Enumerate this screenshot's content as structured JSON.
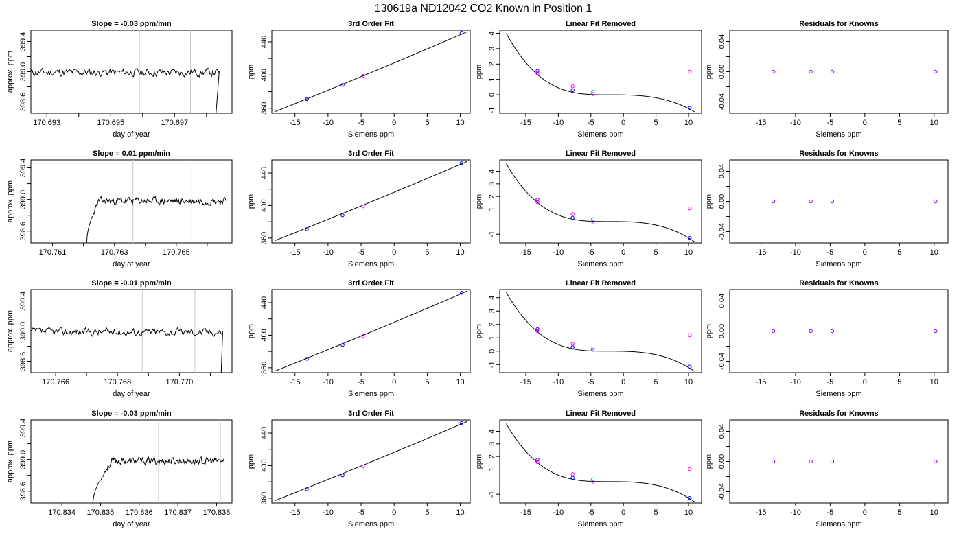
{
  "title": "130619a     ND12042   CO2 Known in Position  1",
  "colors": {
    "line": "#000000",
    "grid": "#c8c8c8",
    "point_known": "#0000ff",
    "point_cyan": "#00c8ff",
    "point_magenta": "#ff00ff",
    "point_purple": "#8000ff"
  },
  "chart_data": [
    {
      "type": "line",
      "title": "Slope =  -0.03  ppm/min",
      "xlabel": "day of year",
      "ylabel": "approx. ppm",
      "xlim": [
        170.6925,
        170.6988
      ],
      "ylim": [
        398.45,
        399.55
      ],
      "xticks": [
        170.693,
        170.694,
        170.695,
        170.696,
        170.697,
        170.698
      ],
      "xtick_labels": [
        "170.693",
        "",
        "170.695",
        "",
        "170.697",
        ""
      ],
      "yticks": [
        398.6,
        398.8,
        399.0,
        399.2,
        399.4
      ],
      "ytick_labels": [
        "398.6",
        "",
        "399.0",
        "",
        "399.4"
      ],
      "vlines": [
        170.6959,
        170.6975
      ],
      "trace": {
        "x_start": 170.6925,
        "x_end": 170.6984,
        "base": 398.99,
        "noise": 0.08,
        "drop_at": 170.6983,
        "drop_to": 398.45,
        "seed": 11
      }
    },
    {
      "type": "line",
      "title": "3rd Order Fit",
      "xlabel": "Siemens ppm",
      "ylabel": "ppm",
      "xlim": [
        -18.5,
        11.5
      ],
      "ylim": [
        354,
        454
      ],
      "xticks": [
        -15,
        -10,
        -5,
        0,
        5,
        10
      ],
      "xtick_labels": [
        "-15",
        "-10",
        "-5",
        "0",
        "5",
        "10"
      ],
      "yticks": [
        360,
        380,
        400,
        420,
        440
      ],
      "ytick_labels": [
        "360",
        "",
        "400",
        "",
        "440"
      ],
      "curve": {
        "x_start": -18,
        "x_end": 11,
        "y_at_start": 356,
        "y_at_end": 452
      },
      "points": [
        {
          "x": -13.2,
          "y": 371,
          "color": "#0000ff"
        },
        {
          "x": -7.8,
          "y": 388,
          "color": "#0000ff"
        },
        {
          "x": -4.7,
          "y": 399,
          "color": "#ff00ff"
        },
        {
          "x": 10.2,
          "y": 451,
          "color": "#0000ff"
        }
      ]
    },
    {
      "type": "line",
      "title": "Linear Fit Removed",
      "xlabel": "Siemens ppm",
      "ylabel": "ppm",
      "xlim": [
        -19,
        12
      ],
      "ylim": [
        -1.2,
        4.2
      ],
      "xticks": [
        -15,
        -10,
        -5,
        0,
        5,
        10
      ],
      "xtick_labels": [
        "-15",
        "-10",
        "-5",
        "0",
        "5",
        "10"
      ],
      "yticks": [
        -1,
        0,
        1,
        2,
        3,
        4
      ],
      "ytick_labels": [
        "-1",
        "0",
        "1",
        "2",
        "3",
        "4"
      ],
      "curve": {
        "x_start": -18,
        "x_end": 10.9,
        "y_at_start": 4.0,
        "y_at_end": -1.1,
        "flat_y": 0.0
      },
      "points": [
        {
          "x": -13.2,
          "y": 1.55,
          "color": "#0000ff"
        },
        {
          "x": -13.2,
          "y": 1.4,
          "color": "#ff00ff"
        },
        {
          "x": -7.8,
          "y": 0.55,
          "color": "#ff00ff"
        },
        {
          "x": -7.8,
          "y": 0.3,
          "color": "#0000ff"
        },
        {
          "x": -4.7,
          "y": 0.2,
          "color": "#00c8ff"
        },
        {
          "x": -4.7,
          "y": 0.05,
          "color": "#ff00ff"
        },
        {
          "x": 10.2,
          "y": 1.5,
          "color": "#ff00ff"
        },
        {
          "x": 10.2,
          "y": -0.85,
          "color": "#0000ff"
        }
      ]
    },
    {
      "type": "scatter",
      "title": "Residuals for Knowns",
      "xlabel": "Siemens ppm",
      "ylabel": "ppm",
      "xlim": [
        -19.5,
        12
      ],
      "ylim": [
        -0.055,
        0.055
      ],
      "xticks": [
        -15,
        -10,
        -5,
        0,
        5,
        10
      ],
      "xtick_labels": [
        "-15",
        "-10",
        "-5",
        "0",
        "5",
        "10"
      ],
      "yticks": [
        -0.04,
        -0.02,
        0.0,
        0.02,
        0.04
      ],
      "ytick_labels": [
        "-0.04",
        "",
        "0.00",
        "",
        "0.04"
      ],
      "points": [
        {
          "x": -13.2,
          "y": 0,
          "color": "#8000ff"
        },
        {
          "x": -7.8,
          "y": 0,
          "color": "#8000ff"
        },
        {
          "x": -4.7,
          "y": 0,
          "color": "#8000ff"
        },
        {
          "x": 10.2,
          "y": 0,
          "color": "#8000ff"
        }
      ]
    },
    {
      "type": "line",
      "title": "Slope =  0.01  ppm/min",
      "xlabel": "day of year",
      "ylabel": "approx. ppm",
      "xlim": [
        170.7603,
        170.7668
      ],
      "ylim": [
        398.45,
        399.5
      ],
      "xticks": [
        170.761,
        170.762,
        170.763,
        170.764,
        170.765,
        170.766
      ],
      "xtick_labels": [
        "170.761",
        "",
        "170.763",
        "",
        "170.765",
        ""
      ],
      "yticks": [
        398.6,
        398.8,
        399.0,
        399.2,
        399.4
      ],
      "ytick_labels": [
        "398.6",
        "",
        "399.0",
        "",
        "399.4"
      ],
      "vlines": [
        170.7636,
        170.7655
      ],
      "trace": {
        "x_start": 170.7621,
        "x_end": 170.7666,
        "base": 398.98,
        "noise": 0.07,
        "rise_from": 398.45,
        "rise_len": 0.0004,
        "seed": 23
      }
    },
    {
      "type": "line",
      "title": "3rd Order Fit",
      "xlabel": "Siemens ppm",
      "ylabel": "ppm",
      "xlim": [
        -18.5,
        11.5
      ],
      "ylim": [
        354,
        456
      ],
      "xticks": [
        -15,
        -10,
        -5,
        0,
        5,
        10
      ],
      "xtick_labels": [
        "-15",
        "-10",
        "-5",
        "0",
        "5",
        "10"
      ],
      "yticks": [
        360,
        380,
        400,
        420,
        440
      ],
      "ytick_labels": [
        "360",
        "",
        "400",
        "",
        "440"
      ],
      "curve": {
        "x_start": -18,
        "x_end": 11,
        "y_at_start": 357,
        "y_at_end": 454
      },
      "points": [
        {
          "x": -13.2,
          "y": 371,
          "color": "#0000ff"
        },
        {
          "x": -7.8,
          "y": 388,
          "color": "#0000ff"
        },
        {
          "x": -4.7,
          "y": 399,
          "color": "#ff00ff"
        },
        {
          "x": 10.2,
          "y": 452,
          "color": "#0000ff"
        }
      ]
    },
    {
      "type": "line",
      "title": "Linear Fit Removed",
      "xlabel": "Siemens ppm",
      "ylabel": "ppm",
      "xlim": [
        -19,
        12
      ],
      "ylim": [
        -1.7,
        4.9
      ],
      "xticks": [
        -15,
        -10,
        -5,
        0,
        5,
        10
      ],
      "xtick_labels": [
        "-15",
        "-10",
        "-5",
        "0",
        "5",
        "10"
      ],
      "yticks": [
        -1,
        1,
        2,
        3,
        4
      ],
      "ytick_labels": [
        "-1",
        "1",
        "2",
        "3",
        "4"
      ],
      "curve": {
        "x_start": -18,
        "x_end": 10.9,
        "y_at_start": 4.6,
        "y_at_end": -1.6,
        "flat_y": 0.0
      },
      "points": [
        {
          "x": -13.2,
          "y": 1.75,
          "color": "#0000ff"
        },
        {
          "x": -13.2,
          "y": 1.55,
          "color": "#ff00ff"
        },
        {
          "x": -7.8,
          "y": 0.6,
          "color": "#ff00ff"
        },
        {
          "x": -7.8,
          "y": 0.3,
          "color": "#0000ff"
        },
        {
          "x": -4.7,
          "y": 0.2,
          "color": "#00c8ff"
        },
        {
          "x": -4.7,
          "y": 0.0,
          "color": "#ff00ff"
        },
        {
          "x": 10.2,
          "y": 1.05,
          "color": "#ff00ff"
        },
        {
          "x": 10.2,
          "y": -1.3,
          "color": "#0000ff"
        }
      ]
    },
    {
      "type": "scatter",
      "title": "Residuals for Knowns",
      "xlabel": "Siemens ppm",
      "ylabel": "ppm",
      "xlim": [
        -19.5,
        12
      ],
      "ylim": [
        -0.055,
        0.055
      ],
      "xticks": [
        -15,
        -10,
        -5,
        0,
        5,
        10
      ],
      "xtick_labels": [
        "-15",
        "-10",
        "-5",
        "0",
        "5",
        "10"
      ],
      "yticks": [
        -0.04,
        -0.02,
        0.0,
        0.02,
        0.04
      ],
      "ytick_labels": [
        "-0.04",
        "",
        "0.00",
        "",
        "0.04"
      ],
      "points": [
        {
          "x": -13.2,
          "y": 0,
          "color": "#8000ff"
        },
        {
          "x": -7.8,
          "y": 0,
          "color": "#8000ff"
        },
        {
          "x": -4.7,
          "y": 0,
          "color": "#8000ff"
        },
        {
          "x": 10.2,
          "y": 0,
          "color": "#8000ff"
        }
      ]
    },
    {
      "type": "line",
      "title": "Slope =  -0.01  ppm/min",
      "xlabel": "day of year",
      "ylabel": "approx. ppm",
      "xlim": [
        170.7652,
        170.7717
      ],
      "ylim": [
        398.45,
        399.55
      ],
      "xticks": [
        170.766,
        170.767,
        170.768,
        170.769,
        170.77,
        170.771
      ],
      "xtick_labels": [
        "170.766",
        "",
        "170.768",
        "",
        "170.770",
        ""
      ],
      "yticks": [
        398.6,
        398.8,
        399.0,
        399.2,
        399.4
      ],
      "ytick_labels": [
        "398.6",
        "",
        "399.0",
        "",
        "399.4"
      ],
      "vlines": [
        170.7688,
        170.7705
      ],
      "trace": {
        "x_start": 170.7652,
        "x_end": 170.7714,
        "base": 398.99,
        "noise": 0.08,
        "drop_at": 170.77135,
        "drop_to": 398.45,
        "seed": 37
      }
    },
    {
      "type": "line",
      "title": "3rd Order Fit",
      "xlabel": "Siemens ppm",
      "ylabel": "ppm",
      "xlim": [
        -18.5,
        11.5
      ],
      "ylim": [
        354,
        456
      ],
      "xticks": [
        -15,
        -10,
        -5,
        0,
        5,
        10
      ],
      "xtick_labels": [
        "-15",
        "-10",
        "-5",
        "0",
        "5",
        "10"
      ],
      "yticks": [
        360,
        380,
        400,
        420,
        440
      ],
      "ytick_labels": [
        "360",
        "",
        "400",
        "",
        "440"
      ],
      "curve": {
        "x_start": -18,
        "x_end": 11,
        "y_at_start": 356,
        "y_at_end": 454
      },
      "points": [
        {
          "x": -13.2,
          "y": 371,
          "color": "#0000ff"
        },
        {
          "x": -7.8,
          "y": 388,
          "color": "#0000ff"
        },
        {
          "x": -4.7,
          "y": 399,
          "color": "#ff00ff"
        },
        {
          "x": 10.2,
          "y": 452,
          "color": "#0000ff"
        }
      ]
    },
    {
      "type": "line",
      "title": "Linear Fit Removed",
      "xlabel": "Siemens ppm",
      "ylabel": "ppm",
      "xlim": [
        -19,
        12
      ],
      "ylim": [
        -1.6,
        4.6
      ],
      "xticks": [
        -15,
        -10,
        -5,
        0,
        5,
        10
      ],
      "xtick_labels": [
        "-15",
        "-10",
        "-5",
        "0",
        "5",
        "10"
      ],
      "yticks": [
        -1,
        0,
        1,
        2,
        3,
        4
      ],
      "ytick_labels": [
        "-1",
        "0",
        "1",
        "2",
        "3",
        "4"
      ],
      "curve": {
        "x_start": -18,
        "x_end": 10.9,
        "y_at_start": 4.4,
        "y_at_end": -1.5,
        "flat_y": 0.0
      },
      "points": [
        {
          "x": -13.2,
          "y": 1.65,
          "color": "#0000ff"
        },
        {
          "x": -13.2,
          "y": 1.5,
          "color": "#ff00ff"
        },
        {
          "x": -7.8,
          "y": 0.55,
          "color": "#ff00ff"
        },
        {
          "x": -7.8,
          "y": 0.3,
          "color": "#0000ff"
        },
        {
          "x": -4.7,
          "y": 0.2,
          "color": "#00c8ff"
        },
        {
          "x": -4.7,
          "y": 0.1,
          "color": "#ff00ff"
        },
        {
          "x": 10.2,
          "y": 1.2,
          "color": "#ff00ff"
        },
        {
          "x": 10.2,
          "y": -1.15,
          "color": "#0000ff"
        }
      ]
    },
    {
      "type": "scatter",
      "title": "Residuals for Knowns",
      "xlabel": "Siemens ppm",
      "ylabel": "ppm",
      "xlim": [
        -19.5,
        12
      ],
      "ylim": [
        -0.055,
        0.055
      ],
      "xticks": [
        -15,
        -10,
        -5,
        0,
        5,
        10
      ],
      "xtick_labels": [
        "-15",
        "-10",
        "-5",
        "0",
        "5",
        "10"
      ],
      "yticks": [
        -0.04,
        -0.02,
        0.0,
        0.02,
        0.04
      ],
      "ytick_labels": [
        "-0.04",
        "",
        "0.00",
        "",
        "0.04"
      ],
      "points": [
        {
          "x": -13.2,
          "y": 0,
          "color": "#8000ff"
        },
        {
          "x": -7.8,
          "y": 0,
          "color": "#8000ff"
        },
        {
          "x": -4.7,
          "y": 0,
          "color": "#8000ff"
        },
        {
          "x": 10.2,
          "y": 0,
          "color": "#8000ff"
        }
      ]
    },
    {
      "type": "line",
      "title": "Slope =  -0.03  ppm/min",
      "xlabel": "day of year",
      "ylabel": "approx. ppm",
      "xlim": [
        170.8332,
        170.8384
      ],
      "ylim": [
        398.45,
        399.5
      ],
      "xticks": [
        170.834,
        170.835,
        170.836,
        170.837,
        170.838
      ],
      "xtick_labels": [
        "170.834",
        "170.835",
        "170.836",
        "170.837",
        "170.838"
      ],
      "yticks": [
        398.6,
        398.8,
        399.0,
        399.2,
        399.4
      ],
      "ytick_labels": [
        "398.6",
        "",
        "399.0",
        "",
        "399.4"
      ],
      "vlines": [
        170.8365,
        170.8381
      ],
      "trace": {
        "x_start": 170.8348,
        "x_end": 170.8382,
        "base": 398.98,
        "noise": 0.07,
        "rise_from": 398.45,
        "rise_len": 0.0005,
        "seed": 53
      }
    },
    {
      "type": "line",
      "title": "3rd Order Fit",
      "xlabel": "Siemens ppm",
      "ylabel": "ppm",
      "xlim": [
        -18.5,
        11.5
      ],
      "ylim": [
        354,
        456
      ],
      "xticks": [
        -15,
        -10,
        -5,
        0,
        5,
        10
      ],
      "xtick_labels": [
        "-15",
        "-10",
        "-5",
        "0",
        "5",
        "10"
      ],
      "yticks": [
        360,
        380,
        400,
        420,
        440
      ],
      "ytick_labels": [
        "360",
        "",
        "400",
        "",
        "440"
      ],
      "curve": {
        "x_start": -18,
        "x_end": 11,
        "y_at_start": 357,
        "y_at_end": 454
      },
      "points": [
        {
          "x": -13.2,
          "y": 371,
          "color": "#0000ff"
        },
        {
          "x": -7.8,
          "y": 388,
          "color": "#0000ff"
        },
        {
          "x": -4.7,
          "y": 399,
          "color": "#ff00ff"
        },
        {
          "x": 10.2,
          "y": 452,
          "color": "#0000ff"
        }
      ]
    },
    {
      "type": "line",
      "title": "Linear Fit Removed",
      "xlabel": "Siemens ppm",
      "ylabel": "ppm",
      "xlim": [
        -19,
        12
      ],
      "ylim": [
        -1.7,
        4.9
      ],
      "xticks": [
        -15,
        -10,
        -5,
        0,
        5,
        10
      ],
      "xtick_labels": [
        "-15",
        "-10",
        "-5",
        "0",
        "5",
        "10"
      ],
      "yticks": [
        -1,
        1,
        2,
        3,
        4
      ],
      "ytick_labels": [
        "-1",
        "1",
        "2",
        "3",
        "4"
      ],
      "curve": {
        "x_start": -18,
        "x_end": 10.9,
        "y_at_start": 4.6,
        "y_at_end": -1.6,
        "flat_y": 0.0
      },
      "points": [
        {
          "x": -13.2,
          "y": 1.75,
          "color": "#0000ff"
        },
        {
          "x": -13.2,
          "y": 1.55,
          "color": "#ff00ff"
        },
        {
          "x": -7.8,
          "y": 0.6,
          "color": "#ff00ff"
        },
        {
          "x": -7.8,
          "y": 0.3,
          "color": "#0000ff"
        },
        {
          "x": -4.7,
          "y": 0.2,
          "color": "#00c8ff"
        },
        {
          "x": -4.7,
          "y": 0.0,
          "color": "#ff00ff"
        },
        {
          "x": 10.2,
          "y": 1.0,
          "color": "#ff00ff"
        },
        {
          "x": 10.2,
          "y": -1.3,
          "color": "#0000ff"
        }
      ]
    },
    {
      "type": "scatter",
      "title": "Residuals for Knowns",
      "xlabel": "Siemens ppm",
      "ylabel": "ppm",
      "xlim": [
        -19.5,
        12
      ],
      "ylim": [
        -0.055,
        0.055
      ],
      "xticks": [
        -15,
        -10,
        -5,
        0,
        5,
        10
      ],
      "xtick_labels": [
        "-15",
        "-10",
        "-5",
        "0",
        "5",
        "10"
      ],
      "yticks": [
        -0.04,
        -0.02,
        0.0,
        0.02,
        0.04
      ],
      "ytick_labels": [
        "-0.04",
        "",
        "0.00",
        "",
        "0.04"
      ],
      "points": [
        {
          "x": -13.2,
          "y": 0,
          "color": "#8000ff"
        },
        {
          "x": -7.8,
          "y": 0,
          "color": "#8000ff"
        },
        {
          "x": -4.7,
          "y": 0,
          "color": "#8000ff"
        },
        {
          "x": 10.2,
          "y": 0,
          "color": "#8000ff"
        }
      ]
    }
  ]
}
